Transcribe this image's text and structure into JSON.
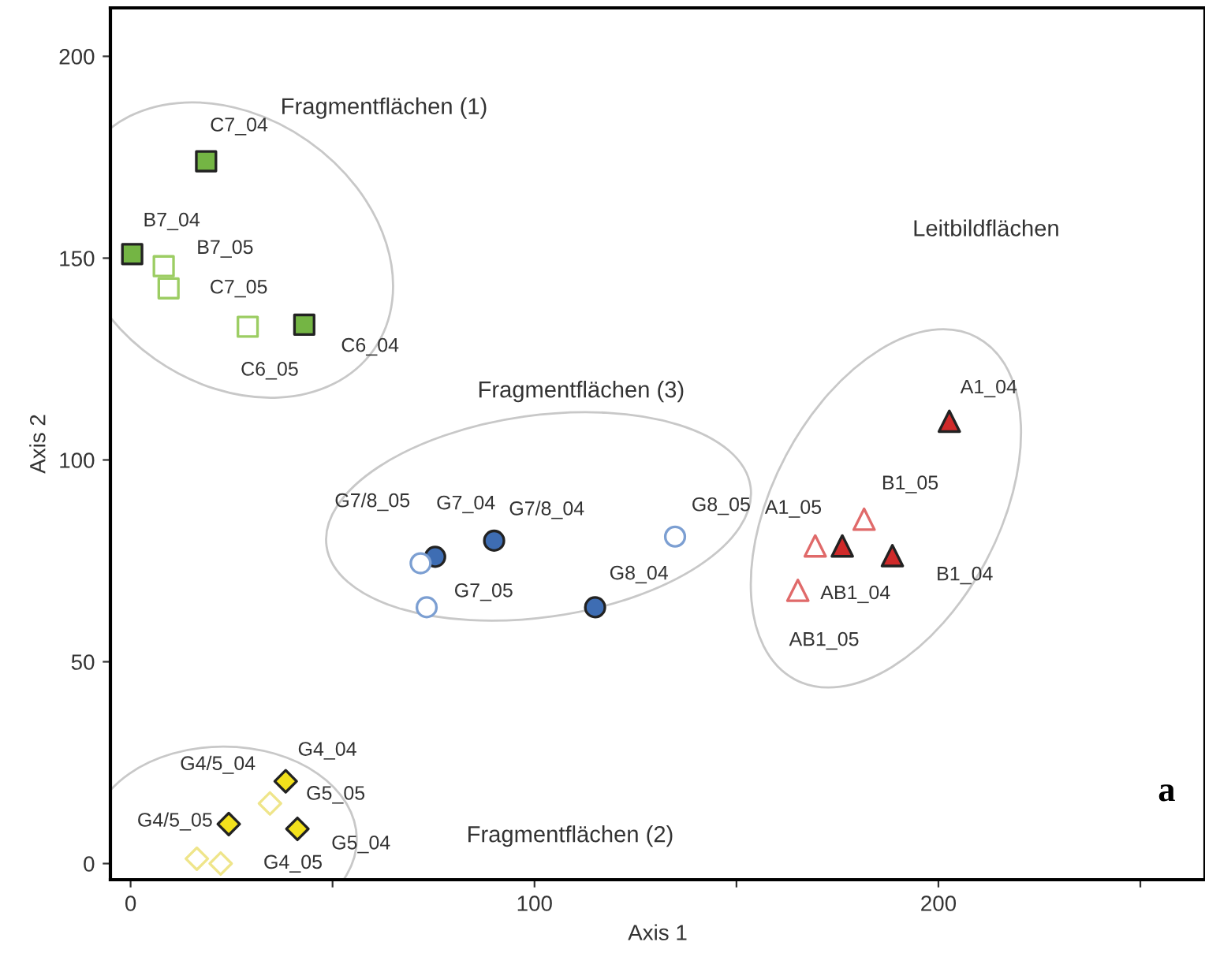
{
  "chart_data": {
    "type": "scatter",
    "xlabel": "Axis 1",
    "ylabel": "Axis 2",
    "xlim": [
      -5,
      266
    ],
    "ylim": [
      -4,
      212
    ],
    "xticks": [
      0,
      {
        "value": 50,
        "label": null
      },
      100,
      {
        "value": 150,
        "label": null
      },
      200,
      {
        "value": 250,
        "label": null
      }
    ],
    "yticks": [
      0,
      50,
      100,
      150,
      200
    ],
    "grid": false,
    "legend": false,
    "annotations": [
      "Fragmentflächen (1)",
      "Fragmentflächen (3)",
      "Leitbildflächen",
      "Fragmentflächen (2)",
      "a"
    ],
    "series": [
      {
        "color": "#74b544",
        "marker": "square",
        "x": [
          18.7,
          0.4,
          43
        ],
        "values": [
          174,
          151,
          133.5
        ],
        "value_labels": [
          "C7_04",
          "B7_04",
          "C6_04"
        ]
      },
      {
        "color": "#9ccd63",
        "marker": "square",
        "x": [
          8.2,
          9.4,
          29
        ],
        "values": [
          148,
          142.5,
          133
        ],
        "value_labels": [
          "B7_05",
          "C7_05",
          "C6_05"
        ]
      },
      {
        "color": "#3e6db3",
        "marker": "circle",
        "x": [
          75.4,
          90,
          115
        ],
        "values": [
          76,
          80,
          63.5
        ],
        "value_labels": [
          "G7_04",
          "G7/8_04",
          "G8_04"
        ]
      },
      {
        "color": "#7c9fd2",
        "marker": "circle",
        "x": [
          71.8,
          134.8,
          73.3
        ],
        "values": [
          74.4,
          81,
          63.5
        ],
        "value_labels": [
          "G7/8_05",
          "G8_05",
          "G7_05"
        ]
      },
      {
        "color": "#f3e11c",
        "marker": "diamond",
        "x": [
          38.4,
          24.3,
          41.3
        ],
        "values": [
          20.4,
          9.8,
          8.6
        ],
        "value_labels": [
          "G4_04",
          "G4/5_04",
          "G5_04"
        ]
      },
      {
        "color": "#efe58a",
        "marker": "diamond",
        "x": [
          34.5,
          16.4,
          22.3
        ],
        "values": [
          14.9,
          1.2,
          0
        ],
        "value_labels": [
          "G5_05",
          "G4/5_05",
          "G4_05"
        ]
      },
      {
        "color": "#d02a2a",
        "marker": "triangle",
        "x": [
          202.7,
          176.2,
          188.6
        ],
        "values": [
          109.6,
          78.7,
          76.3
        ],
        "value_labels": [
          "A1_04",
          "AB1_04",
          "B1_04"
        ]
      },
      {
        "color": "#e06a6a",
        "marker": "triangle",
        "x": [
          181.6,
          169.5,
          165.2
        ],
        "values": [
          85.3,
          78.7,
          67.7
        ],
        "value_labels": [
          "B1_05",
          "A1_05",
          "AB1_05"
        ]
      }
    ]
  }
}
